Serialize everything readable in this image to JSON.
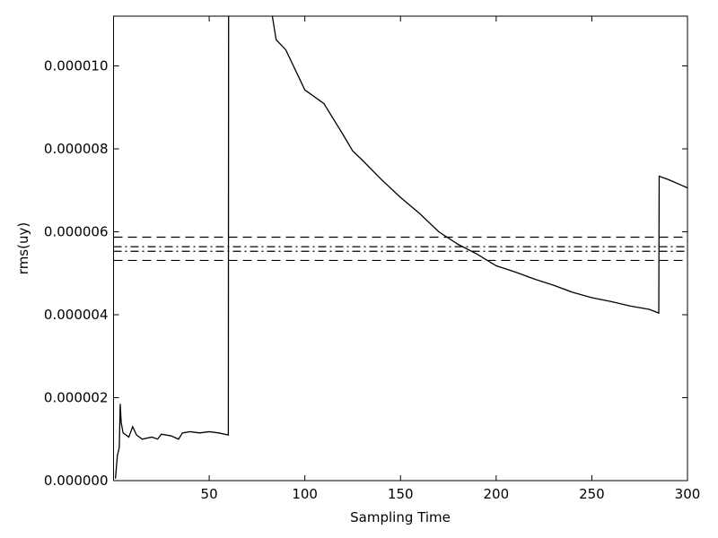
{
  "chart_data": {
    "type": "line",
    "xlabel": "Sampling Time",
    "ylabel": "rms(uy)",
    "xlim": [
      0,
      300
    ],
    "ylim": [
      0,
      1.12e-05
    ],
    "xticks": [
      50,
      100,
      150,
      200,
      250,
      300
    ],
    "yticks": [
      {
        "value": 0,
        "label": "0.000000"
      },
      {
        "value": 2e-06,
        "label": "0.000002"
      },
      {
        "value": 4e-06,
        "label": "0.000004"
      },
      {
        "value": 6e-06,
        "label": "0.000006"
      },
      {
        "value": 8e-06,
        "label": "0.000008"
      },
      {
        "value": 1e-05,
        "label": "0.000010"
      }
    ],
    "series": [
      {
        "color": "#000000",
        "x": [
          1,
          2,
          3,
          3.5,
          4,
          5,
          8,
          10,
          12,
          15,
          20,
          23,
          25,
          30,
          34,
          36,
          40,
          45,
          50,
          55,
          60,
          60.2,
          83,
          85,
          90,
          100,
          110,
          120,
          125,
          130,
          140,
          150,
          160,
          170,
          180,
          190,
          200,
          210,
          220,
          230,
          240,
          250,
          260,
          270,
          280,
          285,
          285.2,
          290,
          300
        ],
        "values": [
          5e-08,
          6e-07,
          8e-07,
          1.85e-06,
          1.4e-06,
          1.15e-06,
          1.05e-06,
          1.3e-06,
          1.1e-06,
          1e-06,
          1.05e-06,
          1e-06,
          1.12e-06,
          1.08e-06,
          1e-06,
          1.15e-06,
          1.18e-06,
          1.15e-06,
          1.18e-06,
          1.15e-06,
          1.1e-06,
          1.5e-05,
          1.12e-05,
          1.063e-05,
          1.039e-05,
          9.42e-06,
          9.09e-06,
          8.34e-06,
          7.95e-06,
          7.73e-06,
          7.26e-06,
          6.83e-06,
          6.44e-06,
          6e-06,
          5.7e-06,
          5.46e-06,
          5.18e-06,
          5.03e-06,
          4.86e-06,
          4.71e-06,
          4.54e-06,
          4.41e-06,
          4.32e-06,
          4.21e-06,
          4.13e-06,
          4.04e-06,
          7.34e-06,
          7.26e-06,
          7.06e-06
        ]
      }
    ],
    "reference_lines": [
      {
        "value": 5.87e-06,
        "style": "dashed",
        "color": "#000000"
      },
      {
        "value": 5.64e-06,
        "style": "dashdot",
        "color": "#000000"
      },
      {
        "value": 5.53e-06,
        "style": "dashdot",
        "color": "#000000"
      },
      {
        "value": 5.31e-06,
        "style": "dashed",
        "color": "#000000"
      }
    ]
  }
}
